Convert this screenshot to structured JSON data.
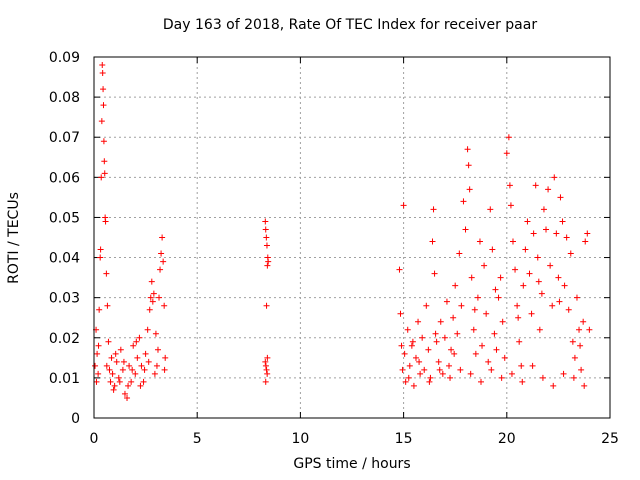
{
  "chart_data": {
    "type": "scatter",
    "title": "Day 163 of 2018, Rate Of TEC Index for receiver paar",
    "xlabel": "GPS time / hours",
    "ylabel": "ROTI / TECUs",
    "xlim": [
      0,
      25
    ],
    "ylim": [
      0,
      0.09
    ],
    "xticks": [
      0,
      5,
      10,
      15,
      20,
      25
    ],
    "xtick_labels": [
      "0",
      "5",
      "10",
      "15",
      "20",
      "25"
    ],
    "yticks": [
      0,
      0.01,
      0.02,
      0.03,
      0.04,
      0.05,
      0.06,
      0.07,
      0.08,
      0.09
    ],
    "ytick_labels": [
      "0",
      "0.01",
      "0.02",
      "0.03",
      "0.04",
      "0.05",
      "0.06",
      "0.07",
      "0.08",
      "0.09"
    ],
    "grid": true,
    "marker": "+",
    "series": [
      {
        "name": "ROTI",
        "color": "#ff0000",
        "points": [
          [
            0.05,
            0.013
          ],
          [
            0.1,
            0.022
          ],
          [
            0.15,
            0.016
          ],
          [
            0.2,
            0.011
          ],
          [
            0.25,
            0.027
          ],
          [
            0.3,
            0.04
          ],
          [
            0.32,
            0.042
          ],
          [
            0.35,
            0.06
          ],
          [
            0.38,
            0.074
          ],
          [
            0.4,
            0.088
          ],
          [
            0.42,
            0.086
          ],
          [
            0.44,
            0.082
          ],
          [
            0.46,
            0.078
          ],
          [
            0.48,
            0.069
          ],
          [
            0.5,
            0.064
          ],
          [
            0.52,
            0.061
          ],
          [
            0.54,
            0.05
          ],
          [
            0.56,
            0.049
          ],
          [
            0.6,
            0.036
          ],
          [
            0.65,
            0.028
          ],
          [
            0.7,
            0.019
          ],
          [
            0.75,
            0.012
          ],
          [
            0.8,
            0.009
          ],
          [
            0.85,
            0.015
          ],
          [
            0.9,
            0.011
          ],
          [
            1.0,
            0.008
          ],
          [
            1.1,
            0.014
          ],
          [
            1.2,
            0.01
          ],
          [
            1.3,
            0.017
          ],
          [
            1.4,
            0.012
          ],
          [
            1.5,
            0.006
          ],
          [
            1.6,
            0.005
          ],
          [
            1.7,
            0.013
          ],
          [
            1.8,
            0.009
          ],
          [
            1.9,
            0.018
          ],
          [
            2.0,
            0.011
          ],
          [
            2.1,
            0.015
          ],
          [
            2.2,
            0.02
          ],
          [
            2.3,
            0.013
          ],
          [
            2.4,
            0.009
          ],
          [
            2.5,
            0.016
          ],
          [
            2.6,
            0.022
          ],
          [
            2.7,
            0.027
          ],
          [
            2.75,
            0.03
          ],
          [
            2.8,
            0.034
          ],
          [
            2.85,
            0.029
          ],
          [
            2.9,
            0.031
          ],
          [
            3.0,
            0.021
          ],
          [
            3.1,
            0.017
          ],
          [
            3.15,
            0.03
          ],
          [
            3.2,
            0.037
          ],
          [
            3.25,
            0.041
          ],
          [
            3.3,
            0.045
          ],
          [
            3.35,
            0.039
          ],
          [
            3.4,
            0.028
          ],
          [
            3.45,
            0.015
          ],
          [
            0.12,
            0.009
          ],
          [
            0.22,
            0.018
          ],
          [
            0.62,
            0.013
          ],
          [
            0.95,
            0.007
          ],
          [
            1.05,
            0.016
          ],
          [
            1.25,
            0.009
          ],
          [
            1.45,
            0.014
          ],
          [
            1.65,
            0.008
          ],
          [
            1.85,
            0.012
          ],
          [
            2.05,
            0.019
          ],
          [
            2.25,
            0.008
          ],
          [
            2.45,
            0.012
          ],
          [
            2.65,
            0.014
          ],
          [
            2.95,
            0.011
          ],
          [
            3.05,
            0.013
          ],
          [
            3.42,
            0.012
          ],
          [
            8.3,
            0.049
          ],
          [
            8.32,
            0.047
          ],
          [
            8.35,
            0.045
          ],
          [
            8.38,
            0.043
          ],
          [
            8.4,
            0.038
          ],
          [
            8.42,
            0.04
          ],
          [
            8.44,
            0.039
          ],
          [
            8.36,
            0.028
          ],
          [
            8.3,
            0.014
          ],
          [
            8.33,
            0.013
          ],
          [
            8.36,
            0.012
          ],
          [
            8.39,
            0.011
          ],
          [
            8.32,
            0.009
          ],
          [
            8.4,
            0.015
          ],
          [
            14.8,
            0.037
          ],
          [
            14.85,
            0.026
          ],
          [
            14.9,
            0.018
          ],
          [
            14.95,
            0.012
          ],
          [
            15.0,
            0.053
          ],
          [
            15.05,
            0.016
          ],
          [
            15.1,
            0.009
          ],
          [
            15.2,
            0.022
          ],
          [
            15.3,
            0.013
          ],
          [
            15.4,
            0.018
          ],
          [
            15.5,
            0.008
          ],
          [
            15.6,
            0.015
          ],
          [
            15.7,
            0.024
          ],
          [
            15.8,
            0.011
          ],
          [
            15.9,
            0.02
          ],
          [
            16.0,
            0.012
          ],
          [
            16.1,
            0.028
          ],
          [
            16.2,
            0.017
          ],
          [
            16.3,
            0.01
          ],
          [
            16.4,
            0.044
          ],
          [
            16.45,
            0.052
          ],
          [
            16.5,
            0.036
          ],
          [
            16.6,
            0.019
          ],
          [
            16.7,
            0.014
          ],
          [
            16.8,
            0.024
          ],
          [
            16.9,
            0.011
          ],
          [
            17.0,
            0.02
          ],
          [
            17.1,
            0.029
          ],
          [
            17.2,
            0.013
          ],
          [
            17.3,
            0.017
          ],
          [
            17.4,
            0.025
          ],
          [
            17.5,
            0.033
          ],
          [
            17.6,
            0.021
          ],
          [
            17.7,
            0.041
          ],
          [
            17.8,
            0.028
          ],
          [
            17.9,
            0.054
          ],
          [
            18.0,
            0.047
          ],
          [
            18.1,
            0.067
          ],
          [
            18.15,
            0.063
          ],
          [
            18.2,
            0.057
          ],
          [
            18.3,
            0.035
          ],
          [
            18.4,
            0.022
          ],
          [
            18.5,
            0.016
          ],
          [
            18.6,
            0.03
          ],
          [
            18.7,
            0.044
          ],
          [
            18.8,
            0.018
          ],
          [
            18.9,
            0.038
          ],
          [
            19.0,
            0.026
          ],
          [
            19.1,
            0.014
          ],
          [
            19.2,
            0.052
          ],
          [
            19.3,
            0.042
          ],
          [
            19.4,
            0.021
          ],
          [
            19.5,
            0.017
          ],
          [
            19.6,
            0.03
          ],
          [
            19.7,
            0.035
          ],
          [
            19.8,
            0.024
          ],
          [
            19.9,
            0.015
          ],
          [
            20.0,
            0.066
          ],
          [
            20.1,
            0.07
          ],
          [
            20.15,
            0.058
          ],
          [
            20.2,
            0.053
          ],
          [
            20.3,
            0.044
          ],
          [
            20.4,
            0.037
          ],
          [
            20.5,
            0.028
          ],
          [
            20.6,
            0.019
          ],
          [
            20.7,
            0.013
          ],
          [
            20.8,
            0.033
          ],
          [
            20.9,
            0.042
          ],
          [
            21.0,
            0.049
          ],
          [
            21.1,
            0.036
          ],
          [
            21.2,
            0.026
          ],
          [
            21.3,
            0.046
          ],
          [
            21.4,
            0.058
          ],
          [
            21.5,
            0.04
          ],
          [
            21.6,
            0.022
          ],
          [
            21.7,
            0.031
          ],
          [
            21.8,
            0.052
          ],
          [
            21.9,
            0.047
          ],
          [
            22.0,
            0.057
          ],
          [
            22.1,
            0.038
          ],
          [
            22.2,
            0.028
          ],
          [
            22.3,
            0.06
          ],
          [
            22.4,
            0.046
          ],
          [
            22.5,
            0.035
          ],
          [
            22.6,
            0.055
          ],
          [
            22.7,
            0.049
          ],
          [
            22.8,
            0.033
          ],
          [
            22.9,
            0.045
          ],
          [
            23.0,
            0.027
          ],
          [
            23.1,
            0.041
          ],
          [
            23.2,
            0.019
          ],
          [
            23.3,
            0.015
          ],
          [
            23.4,
            0.03
          ],
          [
            23.5,
            0.022
          ],
          [
            23.6,
            0.012
          ],
          [
            23.7,
            0.024
          ],
          [
            23.8,
            0.044
          ],
          [
            23.9,
            0.046
          ],
          [
            24.0,
            0.022
          ],
          [
            15.25,
            0.01
          ],
          [
            15.75,
            0.014
          ],
          [
            16.25,
            0.009
          ],
          [
            16.75,
            0.012
          ],
          [
            17.25,
            0.01
          ],
          [
            17.75,
            0.012
          ],
          [
            18.25,
            0.011
          ],
          [
            18.75,
            0.009
          ],
          [
            19.25,
            0.012
          ],
          [
            19.75,
            0.01
          ],
          [
            20.25,
            0.011
          ],
          [
            20.75,
            0.009
          ],
          [
            21.25,
            0.013
          ],
          [
            21.75,
            0.01
          ],
          [
            22.25,
            0.008
          ],
          [
            22.75,
            0.011
          ],
          [
            23.25,
            0.01
          ],
          [
            23.75,
            0.008
          ],
          [
            15.45,
            0.019
          ],
          [
            16.55,
            0.021
          ],
          [
            17.45,
            0.016
          ],
          [
            18.45,
            0.027
          ],
          [
            19.45,
            0.032
          ],
          [
            20.55,
            0.025
          ],
          [
            21.55,
            0.034
          ],
          [
            22.55,
            0.029
          ],
          [
            23.55,
            0.018
          ]
        ]
      }
    ]
  }
}
